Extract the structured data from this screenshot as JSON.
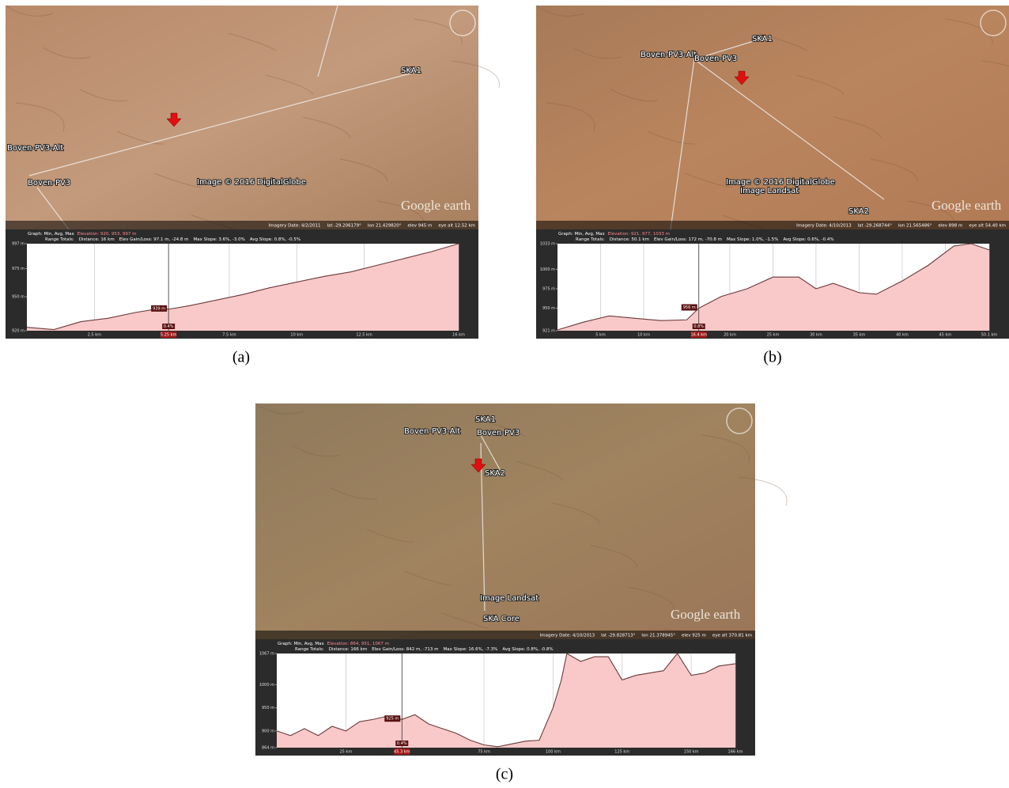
{
  "panels": [
    {
      "caption": "(a)",
      "map": {
        "labels": [
          "SKA1",
          "Boven-PV3-Alt",
          "Boven-PV3",
          "Image © 2016 DigitalGlobe",
          "Google earth"
        ],
        "imagery_date": "Imagery Date: 4/2/2011",
        "lat": "lat -29.206179°",
        "lon": "lon 21.429820°",
        "elev": "elev 945 m",
        "eye_alt": "eye alt 12.52 km"
      },
      "profile": {
        "graph": "Graph: Min, Avg, Max",
        "elevation_summary": "Elevation: 920, 953, 997 m",
        "range_totals": "Range Totals:",
        "distance": "Distance: 16 km",
        "gain_loss": "Elev Gain/Loss: 97.1 m, -24.8 m",
        "max_slope": "Max Slope: 3.6%, -3.0%",
        "avg_slope": "Avg Slope: 0.8%, -0.5%",
        "xlim": [
          0,
          16
        ],
        "ylim": [
          920,
          997
        ],
        "xticks": [
          {
            "value": 2.5,
            "label": "2.5 km"
          },
          {
            "value": 7.5,
            "label": "7.5 km"
          },
          {
            "value": 10,
            "label": "10 km"
          },
          {
            "value": 12.5,
            "label": "12.5 km"
          },
          {
            "value": 16,
            "label": "16 km"
          }
        ],
        "yticks": [
          {
            "value": 997,
            "label": "997 m"
          },
          {
            "value": 975,
            "label": "975 m"
          },
          {
            "value": 950,
            "label": "950 m"
          },
          {
            "value": 920,
            "label": "920 m"
          }
        ],
        "cursor": {
          "distance": {
            "value": 5.25,
            "label": "5.25 km"
          },
          "elevation": "939 m",
          "slope": "0.4%"
        },
        "distance_km": [
          0,
          1,
          2,
          3,
          4,
          5,
          5.25,
          6,
          7,
          8,
          9,
          10,
          11,
          12,
          13,
          14,
          15,
          16
        ],
        "elevation_m": [
          923,
          921,
          928,
          931,
          936,
          940,
          939,
          942,
          947,
          952,
          958,
          963,
          968,
          972,
          978,
          984,
          990,
          997
        ]
      }
    },
    {
      "caption": "(b)",
      "map": {
        "labels": [
          "SKA1",
          "Boven-PV3-Alt",
          "Boven-PV3",
          "SKA2",
          "Image © 2016 DigitalGlobe",
          "Image Landsat",
          "Google earth"
        ],
        "imagery_date": "Imagery Date: 4/10/2013",
        "lat": "lat -29.268744°",
        "lon": "lon 21.565486°",
        "elev": "elev 898 m",
        "eye_alt": "eye alt 54.40 km"
      },
      "profile": {
        "graph": "Graph: Min, Avg, Max",
        "elevation_summary": "Elevation: 921, 977, 1033 m",
        "range_totals": "Range Totals:",
        "distance": "Distance: 50.1 km",
        "gain_loss": "Elev Gain/Loss: 172 m, -70.8 m",
        "max_slope": "Max Slope: 1.0%, -1.5%",
        "avg_slope": "Avg Slope: 0.6%, -0.4%",
        "xlim": [
          0,
          50.1
        ],
        "ylim": [
          921,
          1033
        ],
        "xticks": [
          {
            "value": 5,
            "label": "5 km"
          },
          {
            "value": 10,
            "label": "10 km"
          },
          {
            "value": 20,
            "label": "20 km"
          },
          {
            "value": 25,
            "label": "25 km"
          },
          {
            "value": 30,
            "label": "30 km"
          },
          {
            "value": 35,
            "label": "35 km"
          },
          {
            "value": 40,
            "label": "40 km"
          },
          {
            "value": 45,
            "label": "45 km"
          },
          {
            "value": 50.1,
            "label": "50.1 km"
          }
        ],
        "yticks": [
          {
            "value": 1033,
            "label": "1033 m"
          },
          {
            "value": 1000,
            "label": "1000 m"
          },
          {
            "value": 975,
            "label": "975 m"
          },
          {
            "value": 950,
            "label": "950 m"
          },
          {
            "value": 921,
            "label": "921 m"
          }
        ],
        "cursor": {
          "distance": {
            "value": 16.4,
            "label": "16.4 km"
          },
          "elevation": "956 m",
          "slope": "0.8%"
        },
        "distance_km": [
          0,
          3,
          6,
          9,
          12,
          15,
          16.4,
          19,
          22,
          25,
          28,
          30,
          32,
          35,
          37,
          40,
          43,
          46,
          48,
          50.1
        ],
        "elevation_m": [
          922,
          932,
          940,
          937,
          934,
          935,
          950,
          965,
          975,
          990,
          990,
          975,
          982,
          970,
          968,
          985,
          1005,
          1030,
          1033,
          1025
        ]
      }
    },
    {
      "caption": "(c)",
      "map": {
        "labels": [
          "Boven-PV3-Alt",
          "SKA1",
          "Boven-PV3",
          "SKA2",
          "Image Landsat",
          "SKA Core",
          "Google earth"
        ],
        "imagery_date": "Imagery Date: 4/10/2013",
        "lat": "lat -29.828713°",
        "lon": "lon 21.378945°",
        "elev": "elev 925 m",
        "eye_alt": "eye alt 370.81 km"
      },
      "profile": {
        "graph": "Graph: Min, Avg, Max",
        "elevation_summary": "Elevation: 864, 951, 1067 m",
        "range_totals": "Range Totals:",
        "distance": "Distance: 166 km",
        "gain_loss": "Elev Gain/Loss: 842 m, -713 m",
        "max_slope": "Max Slope: 16.6%, -7.3%",
        "avg_slope": "Avg Slope: 0.8%, -0.8%",
        "xlim": [
          0,
          166
        ],
        "ylim": [
          864,
          1067
        ],
        "xticks": [
          {
            "value": 25,
            "label": "25 km"
          },
          {
            "value": 75,
            "label": "75 km"
          },
          {
            "value": 100,
            "label": "100 km"
          },
          {
            "value": 125,
            "label": "125 km"
          },
          {
            "value": 150,
            "label": "150 km"
          },
          {
            "value": 166,
            "label": "166 km"
          }
        ],
        "yticks": [
          {
            "value": 1067,
            "label": "1067 m"
          },
          {
            "value": 1000,
            "label": "1000 m"
          },
          {
            "value": 950,
            "label": "950 m"
          },
          {
            "value": 900,
            "label": "900 m"
          },
          {
            "value": 864,
            "label": "864 m"
          }
        ],
        "cursor": {
          "distance": {
            "value": 45.3,
            "label": "45.3 km"
          },
          "elevation": "925 m",
          "slope": "0.4%"
        },
        "distance_km": [
          0,
          5,
          10,
          15,
          20,
          25,
          30,
          35,
          40,
          45.3,
          50,
          55,
          60,
          65,
          70,
          75,
          80,
          85,
          90,
          95,
          100,
          103,
          105,
          110,
          115,
          120,
          125,
          130,
          140,
          145,
          150,
          155,
          160,
          166
        ],
        "elevation_m": [
          900,
          890,
          905,
          890,
          910,
          900,
          920,
          925,
          932,
          925,
          935,
          915,
          905,
          895,
          880,
          870,
          866,
          872,
          878,
          880,
          950,
          1010,
          1067,
          1050,
          1060,
          1060,
          1010,
          1020,
          1030,
          1067,
          1020,
          1025,
          1040,
          1045
        ]
      }
    }
  ]
}
